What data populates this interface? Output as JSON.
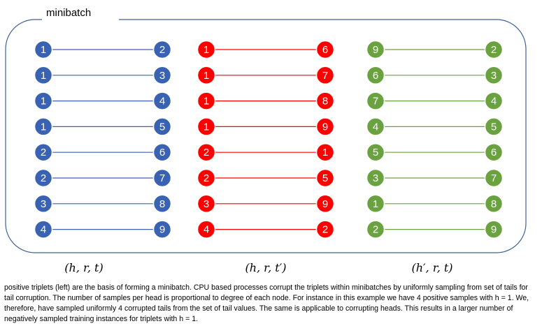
{
  "diagram": {
    "title": "minibatch",
    "columns": [
      {
        "label": "(h, r, t)",
        "color": "#3a62b3",
        "pairs": [
          [
            1,
            2
          ],
          [
            1,
            3
          ],
          [
            1,
            4
          ],
          [
            1,
            5
          ],
          [
            2,
            6
          ],
          [
            2,
            7
          ],
          [
            3,
            8
          ],
          [
            4,
            9
          ]
        ]
      },
      {
        "label": "(h, r, t′)",
        "color": "#ff0000",
        "pairs": [
          [
            1,
            6
          ],
          [
            1,
            7
          ],
          [
            1,
            8
          ],
          [
            1,
            9
          ],
          [
            2,
            1
          ],
          [
            2,
            5
          ],
          [
            3,
            9
          ],
          [
            4,
            2
          ]
        ]
      },
      {
        "label": "(h′, r, t)",
        "color": "#6aa23f",
        "pairs": [
          [
            9,
            2
          ],
          [
            6,
            3
          ],
          [
            7,
            4
          ],
          [
            4,
            5
          ],
          [
            5,
            6
          ],
          [
            3,
            7
          ],
          [
            1,
            8
          ],
          [
            2,
            9
          ]
        ]
      }
    ]
  },
  "caption": "positive triplets (left) are the basis of forming a minibatch. CPU based processes corrupt the triplets within minibatches by uniformly sampling from set of tails for tail corruption. The number of samples per head is proportional to degree of each node. For instance in this example we have 4 positive samples with h = 1. We, therefore, have sampled uniformly 4 corrupted tails from the set of tail values. The same is applicable to corrupting heads. This results in a larger number of negatively sampled training instances for triplets with h = 1."
}
